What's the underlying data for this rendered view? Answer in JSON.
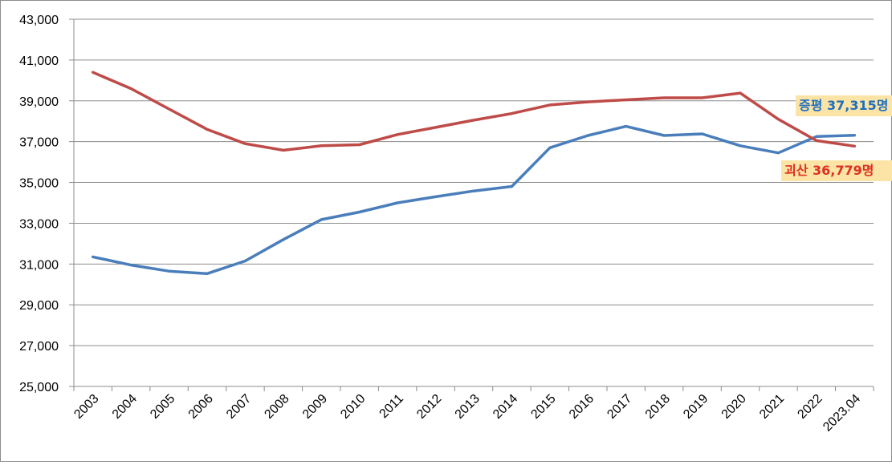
{
  "chart_data": {
    "type": "line",
    "categories": [
      "2003",
      "2004",
      "2005",
      "2006",
      "2007",
      "2008",
      "2009",
      "2010",
      "2011",
      "2012",
      "2013",
      "2014",
      "2015",
      "2016",
      "2017",
      "2018",
      "2019",
      "2020",
      "2021",
      "2022",
      "2023.04"
    ],
    "ylim": [
      25000,
      43000
    ],
    "yticks": [
      25000,
      27000,
      29000,
      31000,
      33000,
      35000,
      37000,
      39000,
      41000,
      43000
    ],
    "ytick_labels": [
      "25,000",
      "27,000",
      "29,000",
      "31,000",
      "33,000",
      "35,000",
      "37,000",
      "39,000",
      "41,000",
      "43,000"
    ],
    "grid": true,
    "series": [
      {
        "name": "증평",
        "color": "#4a7ebb",
        "values": [
          31350,
          30950,
          30650,
          30530,
          31150,
          32200,
          33180,
          33550,
          34000,
          34300,
          34580,
          34800,
          36700,
          37300,
          37750,
          37300,
          37380,
          36800,
          36450,
          37250,
          37315
        ]
      },
      {
        "name": "괴산",
        "color": "#be4b48",
        "values": [
          40400,
          39600,
          38600,
          37600,
          36900,
          36580,
          36800,
          36850,
          37350,
          37700,
          38050,
          38380,
          38800,
          38950,
          39050,
          39150,
          39150,
          39380,
          38100,
          37050,
          36779
        ]
      }
    ],
    "annotations": [
      {
        "series": "증평",
        "text": "증평 37,315명",
        "color": "#1f6fbf",
        "background": "#fbe4a6"
      },
      {
        "series": "괴산",
        "text": "괴산 36,779명",
        "color": "#e03020",
        "background": "#fbe4a6"
      }
    ]
  }
}
